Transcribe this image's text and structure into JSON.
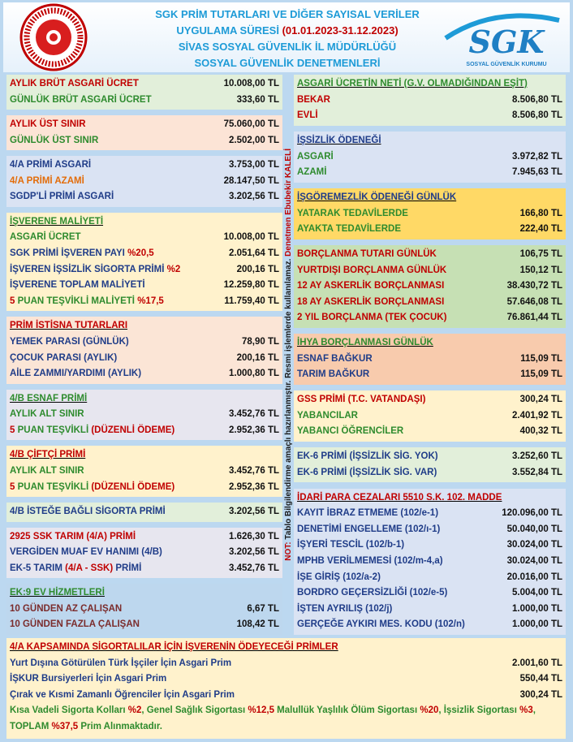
{
  "header": {
    "lines": [
      [
        [
          "SGK PRİM TUTARLARI VE DİĞER SAYISAL VERİLER",
          "#1e9bd7"
        ]
      ],
      [
        [
          "UYGULAMA SÜRESİ ",
          "#1e9bd7"
        ],
        [
          "(01.01.2023-31.12.2023)",
          "#c00000"
        ]
      ],
      [
        [
          "SİVAS SOSYAL GÜVENLİK İL MÜDÜRLÜĞÜ",
          "#1e9bd7"
        ]
      ],
      [
        [
          "SOSYAL GÜVENLİK DENETMENLERİ",
          "#1e9bd7"
        ]
      ]
    ],
    "logo_text": "SGK",
    "logo_subtext": "SOSYAL GÜVENLİK KURUMU"
  },
  "left": [
    {
      "bg": "#e2efda",
      "rows": [
        {
          "label": [
            [
              "AYLIK BRÜT ASGARİ ÜCRET",
              "#c00000"
            ]
          ],
          "value": "10.008,00 TL"
        },
        {
          "label": [
            [
              "GÜNLÜK BRÜT ASGARİ ÜCRET",
              "#2e8b2e"
            ]
          ],
          "value": "333,60 TL"
        }
      ]
    },
    {
      "bg": "#fce4d6",
      "rows": [
        {
          "label": [
            [
              "AYLIK ÜST SINIR",
              "#c00000"
            ]
          ],
          "value": "75.060,00 TL"
        },
        {
          "label": [
            [
              "GÜNLÜK ÜST SINIR",
              "#2e8b2e"
            ]
          ],
          "value": "2.502,00 TL"
        }
      ]
    },
    {
      "bg": "#dae3f3",
      "rows": [
        {
          "label": [
            [
              "4/A PRİMİ ASGARİ",
              "#1f3c88"
            ]
          ],
          "value": "3.753,00 TL"
        },
        {
          "label": [
            [
              "4/A PRİMİ AZAMİ",
              "#e36c09"
            ]
          ],
          "value": "28.147,50 TL"
        },
        {
          "label": [
            [
              "SGDP'Lİ PRİMİ ASGARİ",
              "#1f3c88"
            ]
          ],
          "value": "3.202,56 TL"
        }
      ]
    },
    {
      "bg": "#fff2cc",
      "heading": [
        [
          "İŞVERENE MALİYETİ",
          "#2e8b2e"
        ]
      ],
      "rows": [
        {
          "label": [
            [
              "ASGARİ ÜCRET",
              "#2e8b2e"
            ]
          ],
          "value": "10.008,00 TL"
        },
        {
          "label": [
            [
              "SGK PRİMİ İŞVEREN PAYI ",
              "#1f3c88"
            ],
            [
              "%20,5",
              "#c00000"
            ]
          ],
          "value": "2.051,64 TL"
        },
        {
          "label": [
            [
              "İŞVEREN İŞSİZLİK SİGORTA PRİMİ ",
              "#1f3c88"
            ],
            [
              "%2",
              "#c00000"
            ]
          ],
          "value": "200,16 TL"
        },
        {
          "label": [
            [
              "İŞVERENE TOPLAM MALİYETİ",
              "#1f3c88"
            ]
          ],
          "value": "12.259,80 TL"
        },
        {
          "label": [
            [
              "5",
              "#c00000"
            ],
            [
              " PUAN TEŞVİKLİ MALİYETİ ",
              "#2e8b2e"
            ],
            [
              "%17,5",
              "#c00000"
            ]
          ],
          "value": "11.759,40 TL"
        }
      ]
    },
    {
      "bg": "#fbe5d6",
      "heading": [
        [
          "PRİM İSTİSNA TUTARLARI",
          "#c00000"
        ]
      ],
      "rows": [
        {
          "label": [
            [
              "YEMEK PARASI (GÜNLÜK)",
              "#1f3c88"
            ]
          ],
          "value": "78,90 TL"
        },
        {
          "label": [
            [
              "ÇOCUK PARASI (AYLIK)",
              "#1f3c88"
            ]
          ],
          "value": "200,16 TL"
        },
        {
          "label": [
            [
              "AİLE ZAMMI/YARDIMI (AYLIK)",
              "#1f3c88"
            ]
          ],
          "value": "1.000,80 TL"
        }
      ]
    },
    {
      "bg": "#e7e6ef",
      "heading": [
        [
          "4/B ESNAF PRİMİ",
          "#2e8b2e"
        ]
      ],
      "rows": [
        {
          "label": [
            [
              "AYLIK ALT SINIR",
              "#2e8b2e"
            ]
          ],
          "value": "3.452,76 TL"
        },
        {
          "label": [
            [
              "5",
              "#c00000"
            ],
            [
              " PUAN TEŞVİKLİ ",
              "#2e8b2e"
            ],
            [
              "(DÜZENLİ ÖDEME)",
              "#c00000"
            ]
          ],
          "value": "2.952,36 TL"
        }
      ]
    },
    {
      "bg": "#fff2cc",
      "heading": [
        [
          "4/B ÇİFTÇİ PRİMİ",
          "#c00000"
        ]
      ],
      "rows": [
        {
          "label": [
            [
              "AYLIK ALT SINIR",
              "#2e8b2e"
            ]
          ],
          "value": "3.452,76 TL"
        },
        {
          "label": [
            [
              "5",
              "#c00000"
            ],
            [
              " PUAN TEŞVİKLİ ",
              "#2e8b2e"
            ],
            [
              "(DÜZENLİ ÖDEME)",
              "#c00000"
            ]
          ],
          "value": "2.952,36 TL"
        }
      ]
    },
    {
      "bg": "#e2efda",
      "rows": [
        {
          "label": [
            [
              "4/B İSTEĞE BAĞLI SİGORTA PRİMİ",
              "#1f3c88"
            ]
          ],
          "value": "3.202,56 TL"
        }
      ]
    },
    {
      "bg": "#e7e6ef",
      "rows": [
        {
          "label": [
            [
              "2925 SSK TARIM (4/A) PRİMİ",
              "#c00000"
            ]
          ],
          "value": "1.626,30 TL"
        },
        {
          "label": [
            [
              "VERGİDEN MUAF EV HANIMI (4/B)",
              "#1f3c88"
            ]
          ],
          "value": "3.202,56 TL"
        },
        {
          "label": [
            [
              "EK-5 TARIM ",
              "#1f3c88"
            ],
            [
              "(4/A - SSK)",
              "#c00000"
            ],
            [
              " PRİMİ",
              "#1f3c88"
            ]
          ],
          "value": "3.452,76 TL"
        }
      ]
    },
    {
      "bg": "#bdd7ee",
      "heading": [
        [
          "EK:9 EV HİZMETLERİ",
          "#2e8b2e"
        ]
      ],
      "rows": [
        {
          "label": [
            [
              "10 GÜNDEN AZ ÇALIŞAN",
              "#7b2c2c"
            ]
          ],
          "value": "6,67 TL"
        },
        {
          "label": [
            [
              "10 GÜNDEN FAZLA ÇALIŞAN",
              "#7b2c2c"
            ]
          ],
          "value": "108,42 TL"
        }
      ]
    }
  ],
  "right": [
    {
      "bg": "#e2efda",
      "heading": [
        [
          "ASGARİ ÜCRETİN NETİ (G.V. OLMADIĞINDAN EŞİT)",
          "#2e8b2e"
        ]
      ],
      "rows": [
        {
          "label": [
            [
              "BEKAR",
              "#c00000"
            ]
          ],
          "value": "8.506,80 TL"
        },
        {
          "label": [
            [
              "EVLİ",
              "#c00000"
            ]
          ],
          "value": "8.506,80 TL"
        }
      ]
    },
    {
      "bg": "#dae3f3",
      "heading": [
        [
          "İŞSİZLİK ÖDENEĞİ",
          "#1f3c88"
        ]
      ],
      "rows": [
        {
          "label": [
            [
              "ASGARİ",
              "#2e8b2e"
            ]
          ],
          "value": "3.972,82 TL"
        },
        {
          "label": [
            [
              "AZAMİ",
              "#2e8b2e"
            ]
          ],
          "value": "7.945,63 TL"
        }
      ]
    },
    {
      "bg": "#ffd966",
      "heading": [
        [
          "İŞGÖREMEZLİK ÖDENEĞİ GÜNLÜK",
          "#1f3c88"
        ]
      ],
      "rows": [
        {
          "label": [
            [
              "YATARAK TEDAVİLERDE",
              "#2e8b2e"
            ]
          ],
          "value": "166,80 TL"
        },
        {
          "label": [
            [
              "AYAKTA TEDAVİLERDE",
              "#2e8b2e"
            ]
          ],
          "value": "222,40 TL"
        }
      ]
    },
    {
      "bg": "#c6e0b4",
      "rows": [
        {
          "label": [
            [
              "BORÇLANMA TUTARI GÜNLÜK",
              "#c00000"
            ]
          ],
          "value": "106,75 TL"
        },
        {
          "label": [
            [
              "YURTDIŞI BORÇLANMA GÜNLÜK",
              "#c00000"
            ]
          ],
          "value": "150,12 TL"
        },
        {
          "label": [
            [
              "12 AY ASKERLİK BORÇLANMASI",
              "#c00000"
            ]
          ],
          "value": "38.430,72 TL"
        },
        {
          "label": [
            [
              "18 AY ASKERLİK BORÇLANMASI",
              "#c00000"
            ]
          ],
          "value": "57.646,08 TL"
        },
        {
          "label": [
            [
              "2 YIL BORÇLANMA (TEK ÇOCUK)",
              "#c00000"
            ]
          ],
          "value": "76.861,44 TL"
        }
      ]
    },
    {
      "bg": "#f8cbad",
      "heading": [
        [
          "İHYA BORÇLANMASI GÜNLÜK",
          "#2e8b2e"
        ]
      ],
      "rows": [
        {
          "label": [
            [
              "ESNAF BAĞKUR",
              "#1f3c88"
            ]
          ],
          "value": "115,09 TL"
        },
        {
          "label": [
            [
              "TARIM BAĞKUR",
              "#1f3c88"
            ]
          ],
          "value": "115,09 TL"
        }
      ]
    },
    {
      "bg": "#fff2cc",
      "rows": [
        {
          "label": [
            [
              "GSS PRİMİ (T.C. VATANDAŞI)",
              "#c00000"
            ]
          ],
          "value": "300,24 TL"
        },
        {
          "label": [
            [
              "YABANCILAR",
              "#2e8b2e"
            ]
          ],
          "value": "2.401,92 TL"
        },
        {
          "label": [
            [
              "YABANCI ÖĞRENCİLER",
              "#2e8b2e"
            ]
          ],
          "value": "400,32 TL"
        }
      ]
    },
    {
      "bg": "#e2efda",
      "rows": [
        {
          "label": [
            [
              "EK-6 PRİMİ (İŞSİZLİK SİG. YOK)",
              "#1f3c88"
            ]
          ],
          "value": "3.252,60 TL"
        },
        {
          "label": [
            [
              "EK-6 PRİMİ (İŞSİZLİK SİG. VAR)",
              "#1f3c88"
            ]
          ],
          "value": "3.552,84 TL"
        }
      ]
    },
    {
      "bg": "#dae3f3",
      "heading": [
        [
          "İDARİ PARA CEZALARI 5510 S.K. 102. MADDE",
          "#c00000"
        ]
      ],
      "rows": [
        {
          "label": [
            [
              "KAYIT İBRAZ ETMEME (102/e-1)",
              "#1f3c88"
            ]
          ],
          "value": "120.096,00 TL"
        },
        {
          "label": [
            [
              "DENETİMİ ENGELLEME (102/ı-1)",
              "#1f3c88"
            ]
          ],
          "value": "50.040,00 TL"
        },
        {
          "label": [
            [
              "İŞYERİ TESCİL (102/b-1)",
              "#1f3c88"
            ]
          ],
          "value": "30.024,00 TL"
        },
        {
          "label": [
            [
              "MPHB VERİLMEMESİ (102/m-4,a)",
              "#1f3c88"
            ]
          ],
          "value": "30.024,00 TL"
        },
        {
          "label": [
            [
              "İŞE GİRİŞ (102/a-2)",
              "#1f3c88"
            ]
          ],
          "value": "20.016,00 TL"
        },
        {
          "label": [
            [
              "BORDRO GEÇERSİZLİĞİ (102/e-5)",
              "#1f3c88"
            ]
          ],
          "value": "5.004,00 TL"
        },
        {
          "label": [
            [
              "İŞTEN AYRILIŞ (102/j)",
              "#1f3c88"
            ]
          ],
          "value": "1.000,00 TL"
        },
        {
          "label": [
            [
              "GERÇEĞE AYKIRI MES. KODU (102/n)",
              "#1f3c88"
            ]
          ],
          "value": "1.000,00 TL"
        }
      ]
    }
  ],
  "side_note": [
    [
      "NOT:",
      "#c00000"
    ],
    [
      " Tablo Bilgilendirme amaçlı hazırlanmıştır. Resmi işlemlerde kullanılamaz. ",
      "#1a1a1a"
    ],
    [
      "Denetmen Ebubekir KALELİ",
      "#c00000"
    ]
  ],
  "bottom": {
    "bg": "#fff2cc",
    "heading": [
      [
        "4/A KAPSAMINDA SİGORTALILAR İÇİN İŞVERENİN ÖDEYECEĞİ PRİMLER",
        "#c00000"
      ]
    ],
    "rows": [
      {
        "label": [
          [
            "Yurt Dışına Götürülen Türk İşçiler İçin Asgari Prim",
            "#1f3c88"
          ]
        ],
        "value": "2.001,60 TL"
      },
      {
        "label": [
          [
            "İŞKUR Bursiyerleri İçin Asgari Prim",
            "#1f3c88"
          ]
        ],
        "value": "550,44 TL"
      },
      {
        "label": [
          [
            "Çırak ve Kısmi Zamanlı Öğrenciler İçin Asgari Prim",
            "#1f3c88"
          ]
        ],
        "value": "300,24 TL"
      }
    ],
    "note": [
      [
        "Kısa Vadeli Sigorta Kolları ",
        "#2e8b2e"
      ],
      [
        "%2",
        "#c00000"
      ],
      [
        ", Genel Sağlık Sigortası ",
        "#2e8b2e"
      ],
      [
        "%12,5",
        "#c00000"
      ],
      [
        " Malullük Yaşlılık Ölüm Sigortası ",
        "#2e8b2e"
      ],
      [
        "%20",
        "#c00000"
      ],
      [
        ", İşsizlik Sigortası ",
        "#2e8b2e"
      ],
      [
        "%3",
        "#c00000"
      ],
      [
        ", TOPLAM ",
        "#2e8b2e"
      ],
      [
        "%37,5",
        "#c00000"
      ],
      [
        " Prim Alınmaktadır.",
        "#2e8b2e"
      ]
    ]
  }
}
